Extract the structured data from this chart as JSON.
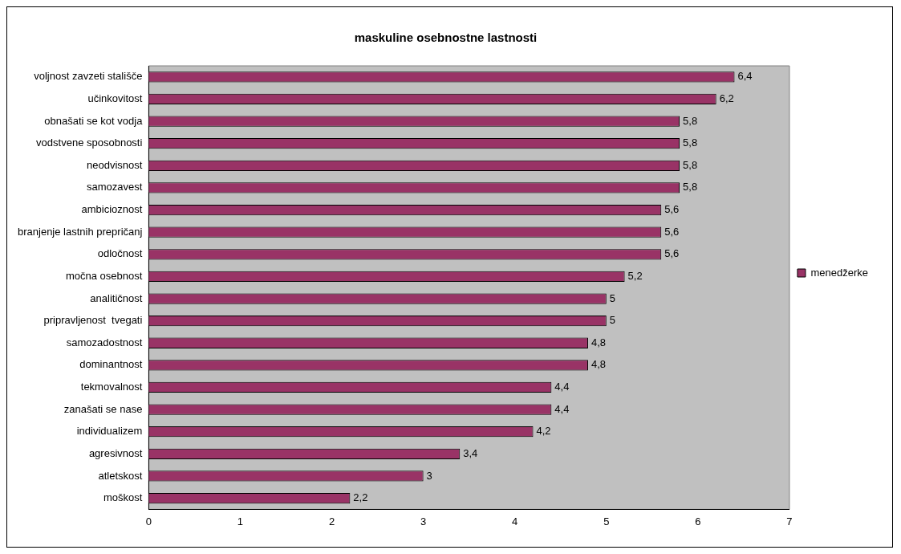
{
  "chart_data": {
    "type": "bar",
    "orientation": "horizontal",
    "title": "maskuline osebnostne lastnosti",
    "categories": [
      "voljnost zavzeti stališče",
      "učinkovitost",
      "obnašati se kot vodja",
      "vodstvene sposobnosti",
      "neodvisnost",
      "samozavest",
      "ambicioznost",
      "branjenje lastnih prepričanj",
      "odločnost",
      "močna osebnost",
      "analitičnost",
      "pripravljenost  tvegati",
      "samozadostnost",
      "dominantnost",
      "tekmovalnost",
      "zanašati se nase",
      "individualizem",
      "agresivnost",
      "atletskost",
      "moškost"
    ],
    "series": [
      {
        "name": "menedžerke",
        "color": "#993366",
        "values": [
          6.4,
          6.2,
          5.8,
          5.8,
          5.8,
          5.8,
          5.6,
          5.6,
          5.6,
          5.2,
          5,
          5,
          4.8,
          4.8,
          4.4,
          4.4,
          4.2,
          3.4,
          3,
          2.2
        ],
        "value_labels": [
          "6,4",
          "6,2",
          "5,8",
          "5,8",
          "5,8",
          "5,8",
          "5,6",
          "5,6",
          "5,6",
          "5,2",
          "5",
          "5",
          "4,8",
          "4,8",
          "4,4",
          "4,4",
          "4,2",
          "3,4",
          "3",
          "2,2"
        ]
      }
    ],
    "xlim": [
      0,
      7
    ],
    "xticks": [
      0,
      1,
      2,
      3,
      4,
      5,
      6,
      7
    ],
    "grid": false,
    "legend": "right"
  }
}
